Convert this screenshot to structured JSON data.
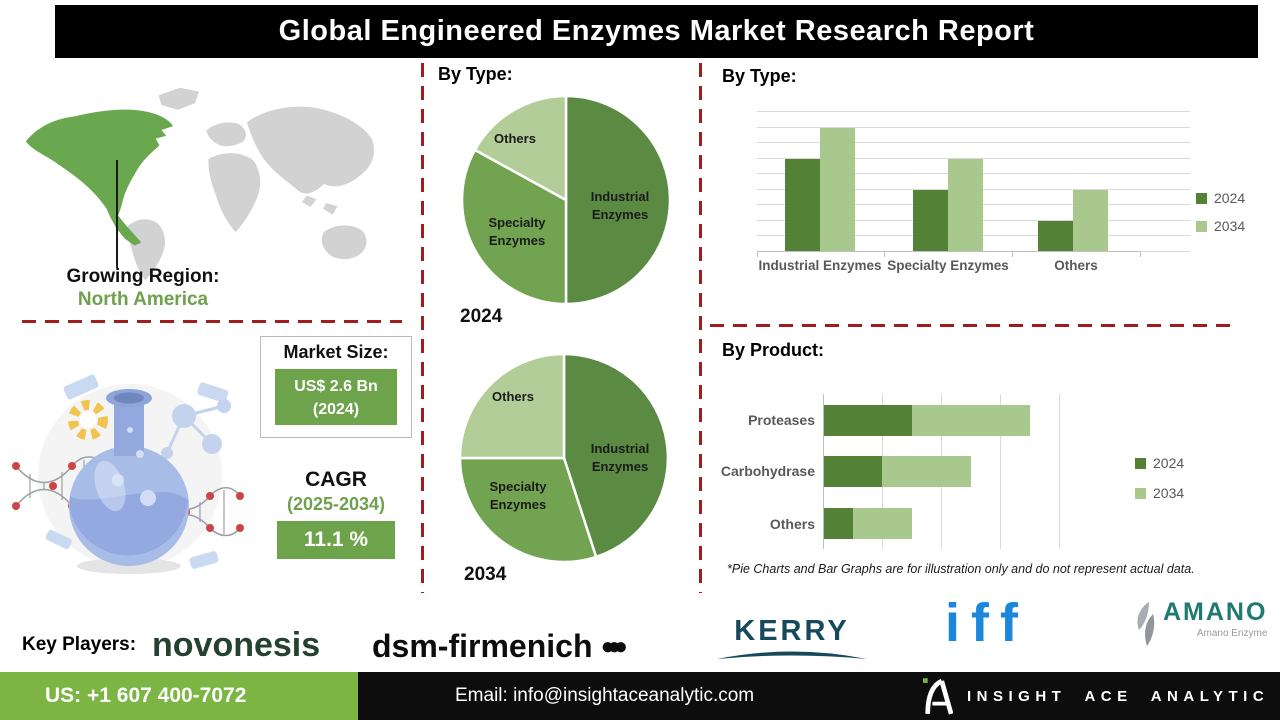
{
  "title": "Global Engineered Enzymes Market Research Report",
  "growing_region": {
    "label": "Growing Region:",
    "value": "North America"
  },
  "market_size": {
    "label": "Market Size:",
    "value": "US$ 2.6 Bn",
    "year": "(2024)"
  },
  "cagr": {
    "label": "CAGR",
    "period": "(2025-2034)",
    "value": "11.1 %"
  },
  "sections": {
    "pie_header": "By Type:",
    "bar_header": "By Type:",
    "product_header": "By Product:"
  },
  "disclaimer": "*Pie Charts and Bar Graphs are for illustration only and do not represent actual data.",
  "key_players": {
    "label": "Key Players:",
    "novonesis": "novonesis",
    "dsm": "dsm-firmenich",
    "dsm_dots": "●●●",
    "kerry": "KERRY",
    "iff": "iff",
    "amano": "AMANO",
    "amano_sub": "Amano Enzyme"
  },
  "footer": {
    "phone": "US: +1 607 400-7072",
    "email": "Email: info@insightaceanalytic.com",
    "brand": "INSIGHT ACE ANALYTIC"
  },
  "colors": {
    "pie": [
      "#5b8a43",
      "#72a351",
      "#b3cd99"
    ],
    "bar_2024": "#538135",
    "bar_2034": "#a9c88e",
    "accent_green": "#6da34b",
    "na_green": "#6aa84f",
    "footer_green": "#7cb543",
    "dashed_red": "#a11d1d",
    "grid_gray": "#d9d9d9",
    "map_gray": "#d2d2d2"
  },
  "chart_data": [
    {
      "type": "pie",
      "title": "By Type:",
      "year": "2024",
      "slices": [
        {
          "label": "Industrial Enzymes",
          "value": 50
        },
        {
          "label": "Specialty Enzymes",
          "value": 33
        },
        {
          "label": "Others",
          "value": 17
        }
      ]
    },
    {
      "type": "pie",
      "title": "By Type:",
      "year": "2034",
      "slices": [
        {
          "label": "Industrial Enzymes",
          "value": 45
        },
        {
          "label": "Specialty Enzymes",
          "value": 30
        },
        {
          "label": "Others",
          "value": 25
        }
      ]
    },
    {
      "type": "bar",
      "title": "By Type:",
      "categories": [
        "Industrial Enzymes",
        "Specialty Enzymes",
        "Others"
      ],
      "series": [
        {
          "name": "2024",
          "values": [
            6,
            4,
            2
          ]
        },
        {
          "name": "2034",
          "values": [
            8,
            6,
            4
          ]
        }
      ],
      "ylim": [
        0,
        9
      ],
      "grid": true,
      "legend_position": "right"
    },
    {
      "type": "bar",
      "orientation": "horizontal",
      "stacked": true,
      "title": "By Product:",
      "categories": [
        "Proteases",
        "Carbohydrase",
        "Others"
      ],
      "series": [
        {
          "name": "2024",
          "values": [
            1.5,
            1,
            0.5
          ]
        },
        {
          "name": "2034",
          "values": [
            2,
            1.5,
            1
          ]
        }
      ],
      "xlim": [
        0,
        4
      ],
      "grid": true,
      "legend_position": "right"
    }
  ]
}
